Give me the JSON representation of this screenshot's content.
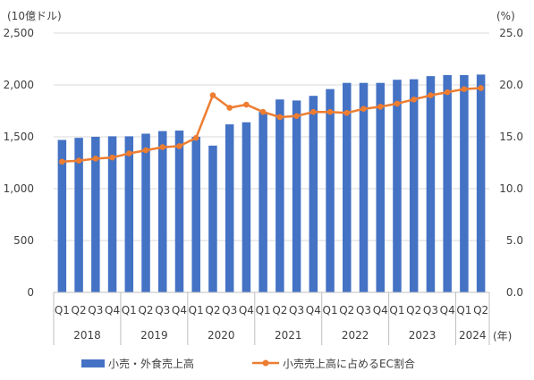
{
  "chart_data": {
    "type": "bar+line",
    "categories": [
      "Q1",
      "Q2",
      "Q3",
      "Q4",
      "Q1",
      "Q2",
      "Q3",
      "Q4",
      "Q1",
      "Q2",
      "Q3",
      "Q4",
      "Q1",
      "Q2",
      "Q3",
      "Q4",
      "Q1",
      "Q2",
      "Q3",
      "Q4",
      "Q1",
      "Q2",
      "Q3",
      "Q4",
      "Q1",
      "Q2"
    ],
    "years": [
      {
        "label": "2018",
        "quarters": 4
      },
      {
        "label": "2019",
        "quarters": 4
      },
      {
        "label": "2020",
        "quarters": 4
      },
      {
        "label": "2021",
        "quarters": 4
      },
      {
        "label": "2022",
        "quarters": 4
      },
      {
        "label": "2023",
        "quarters": 4
      },
      {
        "label": "2024",
        "quarters": 2
      }
    ],
    "x_unit": "(年)",
    "y_left": {
      "unit": "(10億ドル)",
      "min": 0,
      "max": 2500,
      "step": 500,
      "ticks": [
        "0",
        "500",
        "1,000",
        "1,500",
        "2,000",
        "2,500"
      ]
    },
    "y_right": {
      "unit": "(%)",
      "min": 0,
      "max": 25,
      "step": 5,
      "ticks": [
        "0.0",
        "5.0",
        "10.0",
        "15.0",
        "20.0",
        "25.0"
      ]
    },
    "series": [
      {
        "name": "小売・外食売上高",
        "type": "bar",
        "axis": "left",
        "color": "#4472c4",
        "values": [
          1470,
          1490,
          1500,
          1505,
          1505,
          1530,
          1555,
          1560,
          1500,
          1415,
          1620,
          1640,
          1740,
          1860,
          1850,
          1895,
          1960,
          2020,
          2020,
          2020,
          2050,
          2055,
          2085,
          2095,
          2095,
          2100
        ]
      },
      {
        "name": "小売売上高に占めるEC割合",
        "type": "line",
        "axis": "right",
        "color": "#ed7d31",
        "values": [
          12.6,
          12.7,
          12.9,
          13.0,
          13.4,
          13.7,
          14.0,
          14.1,
          14.9,
          19.0,
          17.8,
          18.1,
          17.4,
          16.9,
          17.0,
          17.4,
          17.4,
          17.3,
          17.7,
          17.9,
          18.2,
          18.6,
          19.0,
          19.3,
          19.6,
          19.7
        ]
      }
    ],
    "grid": true,
    "legend": "bottom"
  }
}
